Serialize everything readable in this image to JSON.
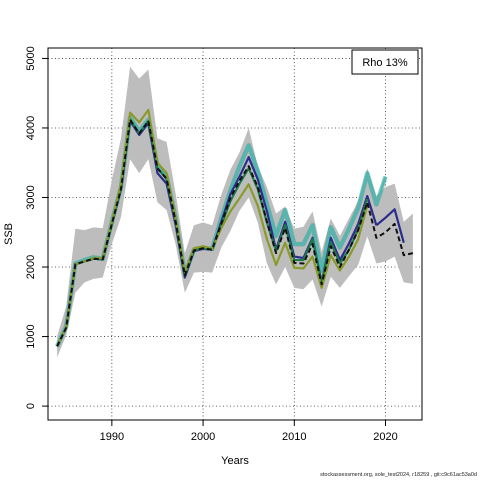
{
  "chart_data": {
    "type": "line",
    "xlabel": "Years",
    "ylabel": "SSB",
    "xlim": [
      1983,
      2024
    ],
    "ylim": [
      -200,
      5150
    ],
    "xticks": [
      1990,
      2000,
      2010,
      2020
    ],
    "yticks": [
      0,
      1000,
      2000,
      3000,
      4000,
      5000
    ],
    "grid": true,
    "legend": {
      "position": "top-right",
      "text": "Rho 13%"
    },
    "band": {
      "x": [
        1984,
        1985,
        1986,
        1987,
        1988,
        1989,
        1990,
        1991,
        1992,
        1993,
        1994,
        1995,
        1996,
        1997,
        1998,
        1999,
        2000,
        2001,
        2002,
        2003,
        2004,
        2005,
        2006,
        2007,
        2008,
        2009,
        2010,
        2011,
        2012,
        2013,
        2014,
        2015,
        2016,
        2017,
        2018,
        2019,
        2020,
        2021,
        2022,
        2023
      ],
      "upper": [
        1000,
        1440,
        2550,
        2530,
        2570,
        2560,
        3250,
        3850,
        4880,
        4710,
        4840,
        3850,
        3800,
        3050,
        2200,
        2600,
        2640,
        2600,
        3040,
        3400,
        3650,
        4000,
        3450,
        3150,
        2770,
        2870,
        2550,
        2580,
        2800,
        2220,
        2700,
        2450,
        2700,
        2950,
        3420,
        3020,
        3150,
        3200,
        2650,
        2770
      ],
      "lower": [
        700,
        1020,
        1630,
        1780,
        1830,
        1850,
        2330,
        2720,
        3550,
        3350,
        3550,
        2930,
        2820,
        2320,
        1630,
        1920,
        1930,
        1920,
        2280,
        2520,
        2810,
        3000,
        2640,
        2050,
        1750,
        2000,
        1700,
        1680,
        1820,
        1430,
        1860,
        1700,
        1870,
        2030,
        2440,
        2050,
        2080,
        2150,
        1780,
        1760
      ]
    },
    "series": [
      {
        "color": "#50b8b0",
        "stroke": "#2aa198",
        "x": [
          1984,
          1985,
          1986,
          1987,
          1988,
          1989,
          1990,
          1991,
          1992,
          1993,
          1994,
          1995,
          1996,
          1997,
          1998,
          1999,
          2000,
          2001,
          2002,
          2003,
          2004,
          2005,
          2006,
          2007,
          2008,
          2009,
          2010,
          2011,
          2012,
          2013,
          2014,
          2015,
          2016,
          2017,
          2018,
          2019,
          2020
        ],
        "values": [
          860,
          1150,
          2050,
          2100,
          2140,
          2120,
          2650,
          3150,
          4150,
          3950,
          4120,
          3450,
          3300,
          2700,
          1900,
          2250,
          2280,
          2260,
          2700,
          3100,
          3450,
          3750,
          3380,
          2900,
          2450,
          2820,
          2330,
          2330,
          2600,
          1950,
          2570,
          2280,
          2550,
          2850,
          3350,
          2900,
          3300
        ]
      },
      {
        "color": "#2b2d8e",
        "x": [
          2019,
          2020,
          2021,
          2022
        ],
        "values": [
          2600,
          2710,
          2830,
          2350
        ]
      },
      {
        "color": "#2b2d8e",
        "x": [
          1984,
          1985,
          1986,
          1987,
          1988,
          1989,
          1990,
          1991,
          1992,
          1993,
          1994,
          1995,
          1996,
          1997,
          1998,
          1999,
          2000,
          2001,
          2002,
          2003,
          2004,
          2005,
          2006,
          2007,
          2008,
          2009,
          2010,
          2011,
          2012,
          2013,
          2014,
          2015,
          2016,
          2017,
          2018,
          2019
        ],
        "values": [
          860,
          1130,
          2040,
          2080,
          2120,
          2110,
          2620,
          3120,
          4100,
          3900,
          4070,
          3350,
          3200,
          2600,
          1850,
          2230,
          2260,
          2250,
          2650,
          3050,
          3300,
          3580,
          3260,
          2800,
          2250,
          2650,
          2150,
          2130,
          2420,
          1780,
          2420,
          2100,
          2340,
          2620,
          3020,
          2600
        ]
      },
      {
        "color": "#1f7a4a",
        "x": [
          1984,
          1985,
          1986,
          1987,
          1988,
          1989,
          1990,
          1991,
          1992,
          1993,
          1994,
          1995,
          1996,
          1997,
          1998,
          1999,
          2000,
          2001,
          2002,
          2003,
          2004,
          2005,
          2006,
          2007,
          2008,
          2009,
          2010,
          2011,
          2012,
          2013,
          2014,
          2015,
          2016,
          2017,
          2018
        ],
        "values": [
          860,
          1130,
          2040,
          2080,
          2120,
          2110,
          2620,
          3120,
          4120,
          3920,
          4100,
          3420,
          3270,
          2650,
          1880,
          2240,
          2270,
          2250,
          2600,
          2950,
          3200,
          3420,
          3120,
          2640,
          2230,
          2600,
          2100,
          2100,
          2400,
          1780,
          2360,
          2050,
          2250,
          2540,
          2980
        ]
      },
      {
        "color": "#8a9a2a",
        "x": [
          1984,
          1985,
          1986,
          1987,
          1988,
          1989,
          1990,
          1991,
          1992,
          1993,
          1994,
          1995,
          1996,
          1997,
          1998,
          1999,
          2000,
          2001,
          2002,
          2003,
          2004,
          2005,
          2006,
          2007,
          2008,
          2009,
          2010,
          2011,
          2012,
          2013,
          2014,
          2015,
          2016,
          2017,
          2018
        ],
        "values": [
          860,
          1130,
          2040,
          2080,
          2130,
          2130,
          2650,
          3200,
          4220,
          4080,
          4260,
          3500,
          3350,
          2700,
          1920,
          2270,
          2300,
          2260,
          2560,
          2800,
          2990,
          3190,
          2880,
          2400,
          2030,
          2350,
          1990,
          1980,
          2150,
          1700,
          2170,
          1950,
          2150,
          2400,
          2880
        ]
      },
      {
        "color": "#111111",
        "dashed": true,
        "x": [
          1984,
          1985,
          1986,
          1987,
          1988,
          1989,
          1990,
          1991,
          1992,
          1993,
          1994,
          1995,
          1996,
          1997,
          1998,
          1999,
          2000,
          2001,
          2002,
          2003,
          2004,
          2005,
          2006,
          2007,
          2008,
          2009,
          2010,
          2011,
          2012,
          2013,
          2014,
          2015,
          2016,
          2017,
          2018,
          2019,
          2020,
          2021,
          2022,
          2023
        ],
        "values": [
          860,
          1130,
          2040,
          2080,
          2120,
          2110,
          2620,
          3120,
          4120,
          3920,
          4100,
          3420,
          3270,
          2650,
          1880,
          2240,
          2270,
          2250,
          2620,
          3000,
          3240,
          3450,
          3150,
          2650,
          2200,
          2560,
          2060,
          2050,
          2330,
          1750,
          2300,
          2000,
          2250,
          2530,
          2930,
          2420,
          2500,
          2620,
          2170,
          2200
        ]
      }
    ]
  },
  "footer": "stockassessment.org, sole_test2024, r18259 , git:c9c61ac53a0d"
}
